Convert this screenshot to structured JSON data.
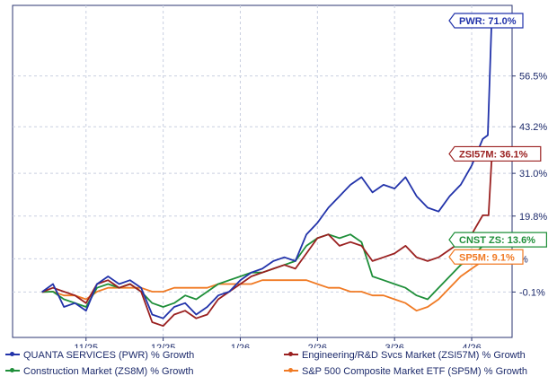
{
  "colors": {
    "axis": "#2b3670",
    "grid": "#c9cfe0",
    "tick_text": "#1c2a6b"
  },
  "chart_data": {
    "type": "line",
    "title": "",
    "xlabel": "",
    "ylabel": "",
    "ylim": [
      -12,
      75
    ],
    "x_range": [
      -0.4,
      6.4
    ],
    "grid": true,
    "legend_position": "bottom",
    "y_ticks": [
      {
        "value": 71.0,
        "label": "PWR: 71.0%",
        "is_badge": true
      },
      {
        "value": 56.5,
        "label": "56.5%"
      },
      {
        "value": 43.2,
        "label": "43.2%"
      },
      {
        "value": 31.0,
        "label": "31.0%"
      },
      {
        "value": 19.8,
        "label": "19.8%"
      },
      {
        "value": 8.6,
        "label": "%"
      },
      {
        "value": -0.1,
        "label": "-0.1%"
      }
    ],
    "x_ticks": [
      {
        "value": 0.6,
        "label": "11/25"
      },
      {
        "value": 1.65,
        "label": "12/25"
      },
      {
        "value": 2.7,
        "label": "1/26"
      },
      {
        "value": 3.75,
        "label": "2/26"
      },
      {
        "value": 4.8,
        "label": "3/26"
      },
      {
        "value": 5.85,
        "label": "4/26"
      }
    ],
    "series": [
      {
        "name": "QUANTA SERVICES (PWR) % Growth",
        "badge": "PWR: 71.0%",
        "color": "#2233aa",
        "points": [
          [
            0,
            -0.1
          ],
          [
            0.15,
            2
          ],
          [
            0.3,
            -4
          ],
          [
            0.45,
            -3
          ],
          [
            0.6,
            -5
          ],
          [
            0.75,
            2
          ],
          [
            0.9,
            4
          ],
          [
            1.05,
            2
          ],
          [
            1.2,
            3
          ],
          [
            1.35,
            1
          ],
          [
            1.5,
            -6
          ],
          [
            1.65,
            -7
          ],
          [
            1.8,
            -4
          ],
          [
            1.95,
            -3
          ],
          [
            2.1,
            -6
          ],
          [
            2.25,
            -4
          ],
          [
            2.4,
            -1
          ],
          [
            2.55,
            0
          ],
          [
            2.7,
            3
          ],
          [
            2.85,
            5
          ],
          [
            3.0,
            6
          ],
          [
            3.15,
            8
          ],
          [
            3.3,
            9
          ],
          [
            3.45,
            8
          ],
          [
            3.6,
            15
          ],
          [
            3.75,
            18
          ],
          [
            3.9,
            22
          ],
          [
            4.05,
            25
          ],
          [
            4.2,
            28
          ],
          [
            4.35,
            30
          ],
          [
            4.5,
            26
          ],
          [
            4.65,
            28
          ],
          [
            4.8,
            27
          ],
          [
            4.95,
            30
          ],
          [
            5.1,
            25
          ],
          [
            5.25,
            22
          ],
          [
            5.4,
            21
          ],
          [
            5.55,
            25
          ],
          [
            5.7,
            28
          ],
          [
            5.85,
            33
          ],
          [
            6.0,
            40
          ],
          [
            6.07,
            41
          ],
          [
            6.12,
            70
          ],
          [
            6.18,
            71
          ]
        ]
      },
      {
        "name": "Engineering/R&D Svcs Market (ZSI57M) % Growth",
        "badge": "ZSI57M: 36.1%",
        "color": "#9a2020",
        "points": [
          [
            0,
            -0.1
          ],
          [
            0.15,
            1
          ],
          [
            0.3,
            0
          ],
          [
            0.45,
            -1
          ],
          [
            0.6,
            -3
          ],
          [
            0.75,
            2
          ],
          [
            0.9,
            3
          ],
          [
            1.05,
            1
          ],
          [
            1.2,
            2
          ],
          [
            1.35,
            0
          ],
          [
            1.5,
            -8
          ],
          [
            1.65,
            -9
          ],
          [
            1.8,
            -6
          ],
          [
            1.95,
            -5
          ],
          [
            2.1,
            -7
          ],
          [
            2.25,
            -6
          ],
          [
            2.4,
            -2
          ],
          [
            2.55,
            0
          ],
          [
            2.7,
            2
          ],
          [
            2.85,
            4
          ],
          [
            3.0,
            5
          ],
          [
            3.15,
            6
          ],
          [
            3.3,
            7
          ],
          [
            3.45,
            6
          ],
          [
            3.6,
            10
          ],
          [
            3.75,
            14
          ],
          [
            3.9,
            15
          ],
          [
            4.05,
            12
          ],
          [
            4.2,
            13
          ],
          [
            4.35,
            12
          ],
          [
            4.5,
            8
          ],
          [
            4.65,
            9
          ],
          [
            4.8,
            10
          ],
          [
            4.95,
            12
          ],
          [
            5.1,
            9
          ],
          [
            5.25,
            8
          ],
          [
            5.4,
            9
          ],
          [
            5.55,
            11
          ],
          [
            5.7,
            13
          ],
          [
            5.85,
            15
          ],
          [
            6.0,
            20
          ],
          [
            6.08,
            20
          ],
          [
            6.12,
            34
          ],
          [
            6.18,
            36.1
          ]
        ]
      },
      {
        "name": "Construction Market (ZS8M) % Growth",
        "badge": "CNST ZS: 13.6%",
        "color": "#1f8f3a",
        "points": [
          [
            0,
            -0.1
          ],
          [
            0.15,
            0
          ],
          [
            0.3,
            -2
          ],
          [
            0.45,
            -3
          ],
          [
            0.6,
            -4
          ],
          [
            0.75,
            1
          ],
          [
            0.9,
            2
          ],
          [
            1.05,
            1
          ],
          [
            1.2,
            2
          ],
          [
            1.35,
            0
          ],
          [
            1.5,
            -3
          ],
          [
            1.65,
            -4
          ],
          [
            1.8,
            -3
          ],
          [
            1.95,
            -1
          ],
          [
            2.1,
            -2
          ],
          [
            2.25,
            0
          ],
          [
            2.4,
            2
          ],
          [
            2.55,
            3
          ],
          [
            2.7,
            4
          ],
          [
            2.85,
            5
          ],
          [
            3.0,
            5
          ],
          [
            3.15,
            6
          ],
          [
            3.3,
            7
          ],
          [
            3.45,
            8
          ],
          [
            3.6,
            12
          ],
          [
            3.75,
            14
          ],
          [
            3.9,
            15
          ],
          [
            4.05,
            14
          ],
          [
            4.2,
            15
          ],
          [
            4.35,
            13
          ],
          [
            4.5,
            4
          ],
          [
            4.65,
            3
          ],
          [
            4.8,
            2
          ],
          [
            4.95,
            1
          ],
          [
            5.1,
            -1
          ],
          [
            5.25,
            -2
          ],
          [
            5.4,
            1
          ],
          [
            5.55,
            4
          ],
          [
            5.7,
            7
          ],
          [
            5.85,
            9
          ],
          [
            6.0,
            12
          ],
          [
            6.1,
            13.6
          ]
        ]
      },
      {
        "name": "S&P 500 Composite Market ETF (SP5M) % Growth",
        "badge": "SP5M: 9.1%",
        "color": "#f07a24",
        "points": [
          [
            0,
            -0.1
          ],
          [
            0.15,
            0
          ],
          [
            0.3,
            -1
          ],
          [
            0.45,
            -1
          ],
          [
            0.6,
            -2
          ],
          [
            0.75,
            0
          ],
          [
            0.9,
            1
          ],
          [
            1.05,
            1
          ],
          [
            1.2,
            1
          ],
          [
            1.35,
            1
          ],
          [
            1.5,
            0
          ],
          [
            1.65,
            0
          ],
          [
            1.8,
            1
          ],
          [
            1.95,
            1
          ],
          [
            2.1,
            1
          ],
          [
            2.25,
            1
          ],
          [
            2.4,
            2
          ],
          [
            2.55,
            2
          ],
          [
            2.7,
            2
          ],
          [
            2.85,
            2
          ],
          [
            3.0,
            3
          ],
          [
            3.15,
            3
          ],
          [
            3.3,
            3
          ],
          [
            3.45,
            3
          ],
          [
            3.6,
            3
          ],
          [
            3.75,
            2
          ],
          [
            3.9,
            1
          ],
          [
            4.05,
            1
          ],
          [
            4.2,
            0
          ],
          [
            4.35,
            0
          ],
          [
            4.5,
            -1
          ],
          [
            4.65,
            -1
          ],
          [
            4.8,
            -2
          ],
          [
            4.95,
            -3
          ],
          [
            5.1,
            -5
          ],
          [
            5.25,
            -4
          ],
          [
            5.4,
            -2
          ],
          [
            5.55,
            1
          ],
          [
            5.7,
            4
          ],
          [
            5.85,
            6
          ],
          [
            6.0,
            8
          ],
          [
            6.1,
            9.1
          ]
        ]
      }
    ]
  }
}
